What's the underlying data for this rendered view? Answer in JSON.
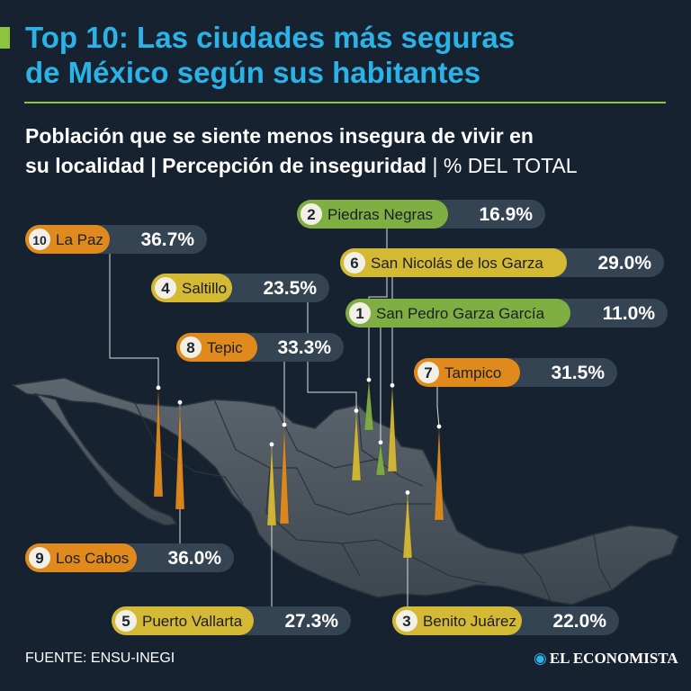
{
  "header": {
    "title_line1": "Top 10: Las ciudades más seguras",
    "title_line2": "de México según sus habitantes",
    "subtitle_line1": "Población que se siente menos insegura de vivir en",
    "subtitle_line2_bold": "su localidad | Percepción de inseguridad",
    "subtitle_line2_light": " | % DEL TOTAL"
  },
  "colors": {
    "background": "#162230",
    "title": "#2bb3e8",
    "accent": "#8cc43f",
    "rank_green": "#7fae43",
    "rank_yellow": "#d4b934",
    "rank_orange": "#e08a1e",
    "label_bg": "#354452",
    "map_fill": "#4a535c"
  },
  "chart_data": {
    "type": "bar",
    "title": "Top 10: Las ciudades más seguras de México según sus habitantes",
    "ylabel": "% DEL TOTAL",
    "ylim": [
      0,
      40
    ],
    "categories": [
      "San Pedro Garza García",
      "Piedras Negras",
      "Benito Juárez",
      "Saltillo",
      "Puerto Vallarta",
      "San Nicolás de los Garza",
      "Tampico",
      "Tepic",
      "Los Cabos",
      "La Paz"
    ],
    "values": [
      11.0,
      16.9,
      22.0,
      23.5,
      27.3,
      29.0,
      31.5,
      33.3,
      36.0,
      36.7
    ],
    "items": [
      {
        "rank": "1",
        "city": "San Pedro Garza García",
        "value": 11.0,
        "value_label": "11.0%"
      },
      {
        "rank": "2",
        "city": "Piedras Negras",
        "value": 16.9,
        "value_label": "16.9%"
      },
      {
        "rank": "3",
        "city": "Benito Juárez",
        "value": 22.0,
        "value_label": "22.0%"
      },
      {
        "rank": "4",
        "city": "Saltillo",
        "value": 23.5,
        "value_label": "23.5%"
      },
      {
        "rank": "5",
        "city": "Puerto Vallarta",
        "value": 27.3,
        "value_label": "27.3%"
      },
      {
        "rank": "6",
        "city": "San Nicolás de los Garza",
        "value": 29.0,
        "value_label": "29.0%"
      },
      {
        "rank": "7",
        "city": "Tampico",
        "value": 31.5,
        "value_label": "31.5%"
      },
      {
        "rank": "8",
        "city": "Tepic",
        "value": 33.3,
        "value_label": "33.3%"
      },
      {
        "rank": "9",
        "city": "Los Cabos",
        "value": 36.0,
        "value_label": "36.0%"
      },
      {
        "rank": "10",
        "city": "La Paz",
        "value": 36.7,
        "value_label": "36.7%"
      }
    ]
  },
  "footer": {
    "source": "FUENTE: ENSU-INEGI",
    "brand": "EL ECONOMISTA",
    "brand_icon": "globe-logo-icon"
  }
}
